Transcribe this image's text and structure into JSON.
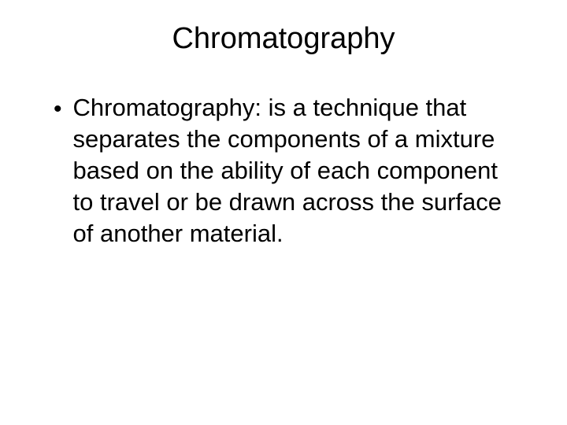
{
  "slide": {
    "title": "Chromatography",
    "bullet_marker": "•",
    "bullet_text": "Chromatography: is a technique that separates the components of a mixture based on the ability of each component to travel or be drawn across the surface of another material.",
    "background_color": "#ffffff",
    "text_color": "#000000",
    "title_fontsize": 38,
    "body_fontsize": 31,
    "font_family": "Arial"
  }
}
